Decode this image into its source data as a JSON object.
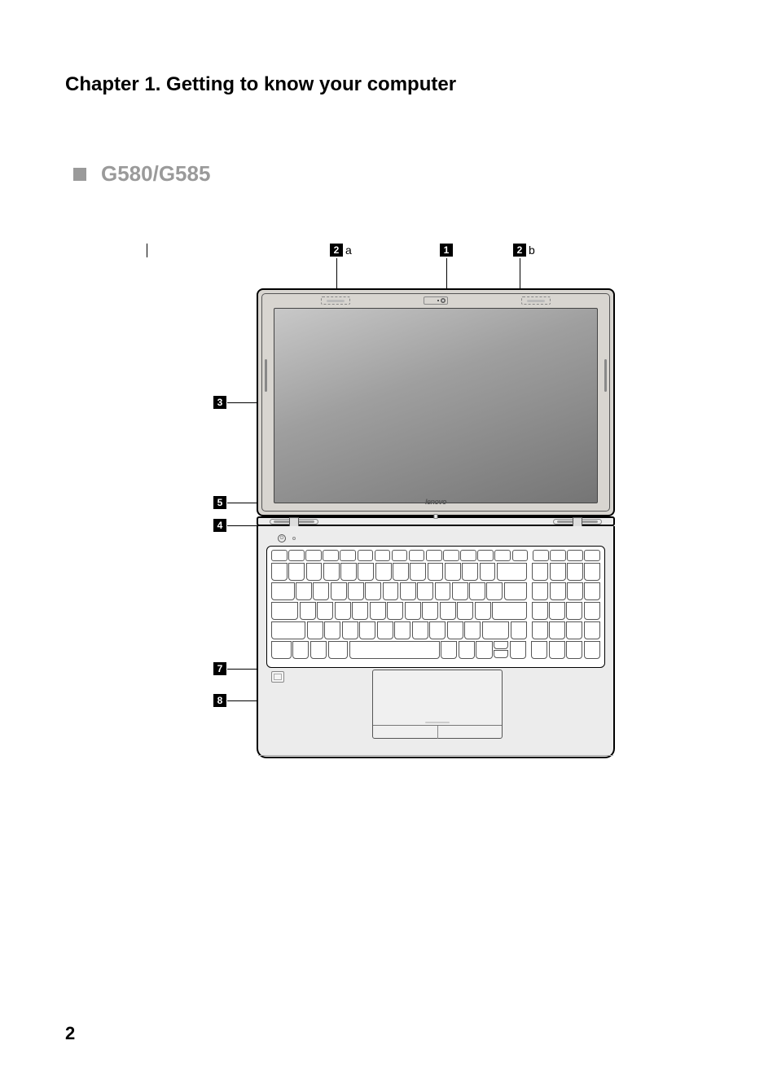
{
  "chapter_title": "Chapter 1. Getting to know your computer",
  "model": {
    "label": "G580/G585",
    "bullet_color": "#9a9a9a",
    "text_color": "#9a9a9a"
  },
  "callouts": {
    "top": [
      {
        "num": "2",
        "letter": "a"
      },
      {
        "num": "1",
        "letter": ""
      },
      {
        "num": "2",
        "letter": "b"
      }
    ],
    "side": [
      {
        "num": "3"
      },
      {
        "num": "5"
      },
      {
        "num": "4"
      },
      {
        "num": "7"
      },
      {
        "num": "8"
      }
    ]
  },
  "laptop": {
    "brand_text": "lenovo",
    "colors": {
      "outline": "#000000",
      "body": "#ececec",
      "lid_bezel": "#d8d5d0",
      "screen_gradient_start": "#c8c8c8",
      "screen_gradient_end": "#757575",
      "key_border": "#555555",
      "key_bg": "#ffffff"
    },
    "keyboard_rows": {
      "row0_count": 19,
      "main_cols": 14,
      "numpad_cols": 4
    }
  },
  "page_number": "2"
}
